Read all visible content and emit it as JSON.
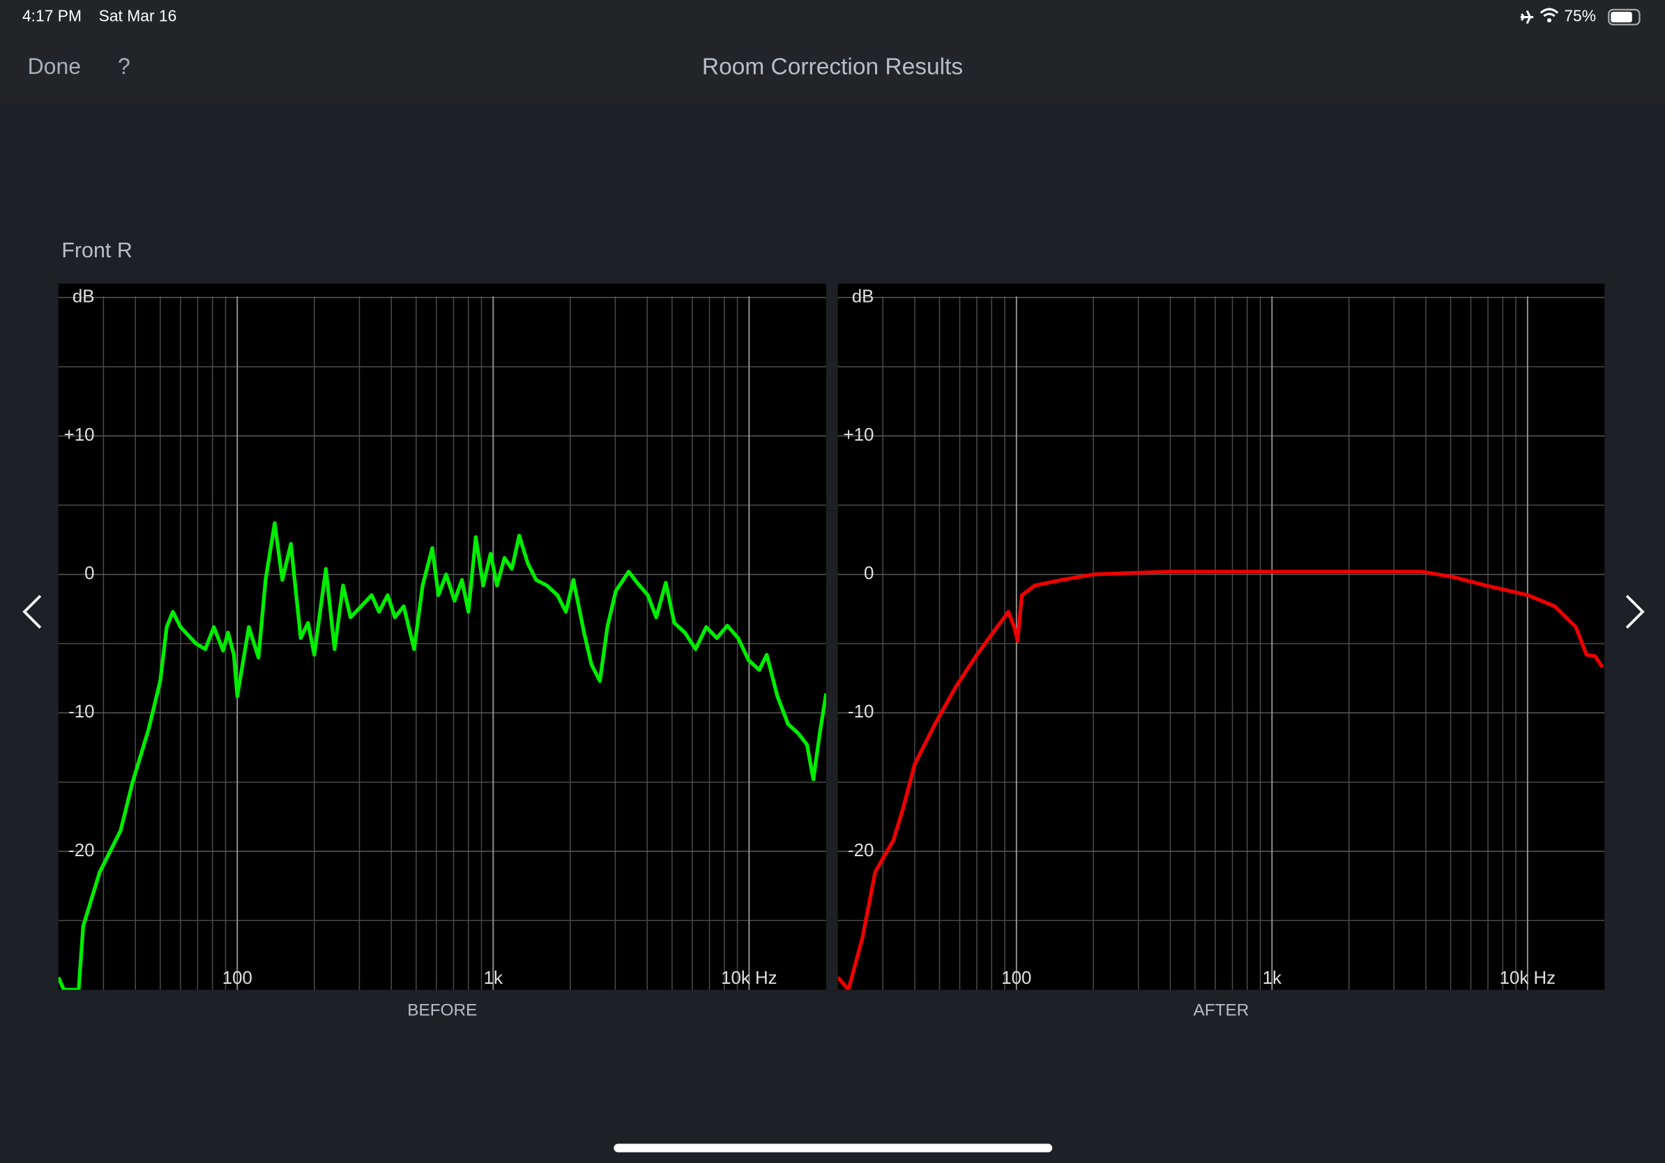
{
  "status_bar": {
    "time": "4:17 PM",
    "date": "Sat Mar 16",
    "battery": "75%"
  },
  "nav_bar": {
    "done": "Done",
    "help": "?",
    "title": "Room Correction Results"
  },
  "section_label": "Front R",
  "chart_data": [
    {
      "type": "line",
      "x_label": "BEFORE",
      "xscale": "log",
      "grid": true,
      "color": "#00ee00",
      "xlim": [
        20,
        20000
      ],
      "ylim": [
        -30,
        21
      ],
      "xticks": [
        100,
        {
          "value": 1000,
          "label": "1k"
        },
        {
          "value": 10000,
          "label": "10k Hz"
        }
      ],
      "xminor": [
        30,
        40,
        50,
        60,
        70,
        80,
        90,
        200,
        300,
        400,
        500,
        600,
        700,
        800,
        900,
        2000,
        3000,
        4000,
        5000,
        6000,
        7000,
        8000,
        9000
      ],
      "yticks": [
        {
          "value": 20,
          "label": "dB"
        },
        {
          "value": 10,
          "label": "+10"
        },
        0,
        -10,
        -20
      ],
      "yminor": [
        15,
        5,
        -5,
        -15,
        -25
      ],
      "x": [
        20,
        21,
        24,
        25,
        29,
        35,
        39,
        45,
        50,
        53,
        56,
        60,
        69,
        75,
        81,
        88,
        92,
        97,
        100,
        111,
        121,
        129,
        140,
        150,
        162,
        177,
        189,
        200,
        222,
        240,
        259,
        277,
        305,
        335,
        358,
        387,
        413,
        447,
        491,
        530,
        578,
        611,
        655,
        706,
        755,
        800,
        855,
        914,
        977,
        1035,
        1107,
        1183,
        1264,
        1365,
        1472,
        1622,
        1783,
        1924,
        2058,
        2265,
        2421,
        2612,
        2794,
        3014,
        3384,
        3652,
        4020,
        4337,
        4727,
        5100,
        5610,
        6180,
        6800,
        7480,
        8220,
        9060,
        9960,
        10960,
        11720,
        12900,
        14190,
        15600,
        16840,
        17830,
        18880,
        20000
      ],
      "values": [
        -29.1,
        -30,
        -30,
        -25.4,
        -21.5,
        -18.5,
        -15,
        -11.2,
        -7.7,
        -3.8,
        -2.7,
        -3.8,
        -5,
        -5.4,
        -3.8,
        -5.5,
        -4.2,
        -5.8,
        -8.8,
        -3.8,
        -6,
        -0.4,
        3.7,
        -0.4,
        2.2,
        -4.6,
        -3.5,
        -5.8,
        0.4,
        -5.4,
        -0.8,
        -3.1,
        -2.3,
        -1.5,
        -2.7,
        -1.5,
        -3.1,
        -2.3,
        -5.4,
        -0.8,
        1.9,
        -1.5,
        0,
        -1.9,
        -0.4,
        -2.7,
        2.7,
        -0.8,
        1.5,
        -0.8,
        1.2,
        0.4,
        2.8,
        0.8,
        -0.4,
        -0.8,
        -1.5,
        -2.7,
        -0.4,
        -4.2,
        -6.5,
        -7.7,
        -3.8,
        -1.2,
        0.2,
        -0.6,
        -1.5,
        -3.1,
        -0.6,
        -3.5,
        -4.2,
        -5.4,
        -3.8,
        -4.6,
        -3.7,
        -4.6,
        -6.2,
        -6.9,
        -5.8,
        -8.8,
        -10.8,
        -11.5,
        -12.3,
        -14.8,
        -11.5,
        -8.6
      ]
    },
    {
      "type": "line",
      "x_label": "AFTER",
      "xscale": "log",
      "grid": true,
      "color": "#ee0000",
      "xlim": [
        20,
        20000
      ],
      "ylim": [
        -30,
        21
      ],
      "xticks": [
        100,
        {
          "value": 1000,
          "label": "1k"
        },
        {
          "value": 10000,
          "label": "10k Hz"
        }
      ],
      "xminor": [
        30,
        40,
        50,
        60,
        70,
        80,
        90,
        200,
        300,
        400,
        500,
        600,
        700,
        800,
        900,
        2000,
        3000,
        4000,
        5000,
        6000,
        7000,
        8000,
        9000
      ],
      "yticks": [
        {
          "value": 20,
          "label": "dB"
        },
        {
          "value": 10,
          "label": "+10"
        },
        0,
        -10,
        -20
      ],
      "yminor": [
        15,
        5,
        -5,
        -15,
        -25
      ],
      "x": [
        20,
        22,
        25,
        28,
        33,
        36,
        40,
        48,
        58,
        70,
        81,
        93,
        98,
        101,
        105,
        118,
        150,
        200,
        390,
        1014,
        2637,
        3866,
        5150,
        6860,
        10050,
        12770,
        15460,
        17000,
        18360,
        19640
      ],
      "values": [
        -29.1,
        -30,
        -26.2,
        -21.5,
        -19.2,
        -16.9,
        -13.7,
        -10.8,
        -8.1,
        -5.8,
        -4.2,
        -2.7,
        -3.8,
        -4.8,
        -1.5,
        -0.8,
        -0.4,
        0,
        0.2,
        0.2,
        0.2,
        0.2,
        -0.2,
        -0.8,
        -1.5,
        -2.3,
        -3.8,
        -5.8,
        -5.9,
        -6.7
      ]
    }
  ]
}
